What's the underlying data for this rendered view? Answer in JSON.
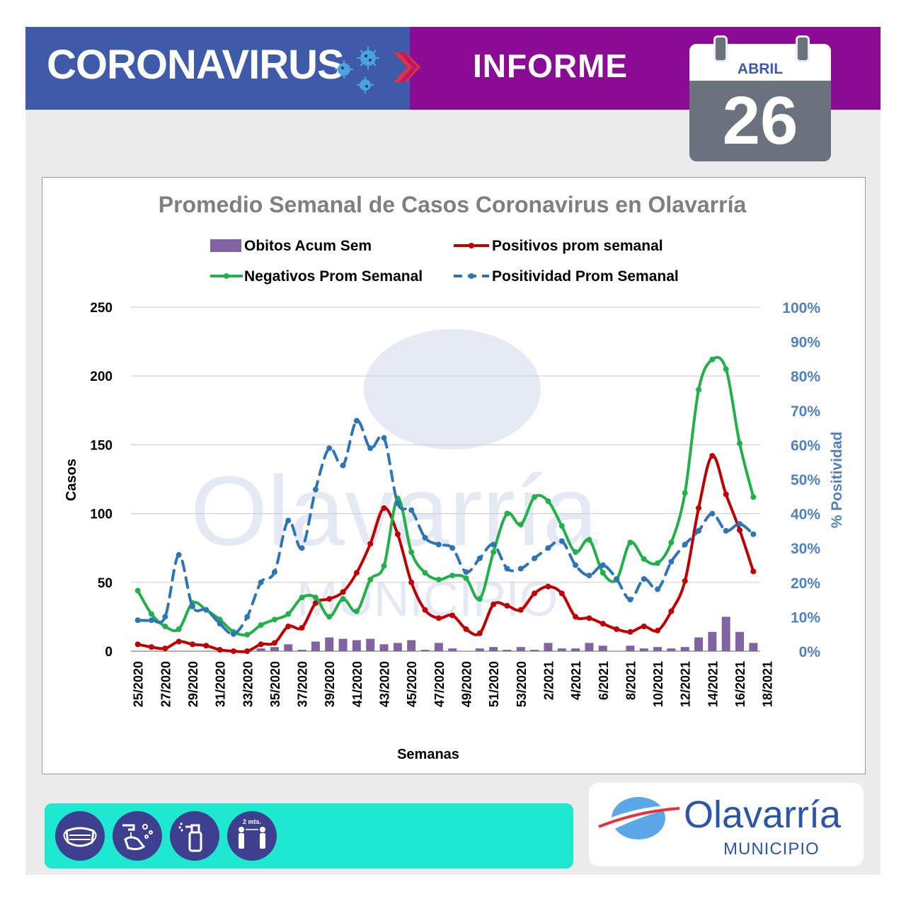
{
  "header": {
    "title": "CORONAVIRUS",
    "subtitle": "INFORME",
    "colors": {
      "left": "#3f5aa8",
      "right": "#8c0b94"
    },
    "date": {
      "month": "ABRIL",
      "day": "26"
    }
  },
  "chart_data": {
    "type": "bar+line",
    "title": "Promedio Semanal de Casos Coronavirus en Olavarría",
    "xlabel": "Semanas",
    "ylabel": "Casos",
    "y2label": "% Positividad",
    "ylim": [
      0,
      250
    ],
    "y2lim": [
      0,
      100
    ],
    "yticks": [
      "0",
      "50",
      "100",
      "150",
      "200",
      "250"
    ],
    "y2ticks": [
      "0%",
      "10%",
      "20%",
      "30%",
      "40%",
      "50%",
      "60%",
      "70%",
      "80%",
      "90%",
      "100%"
    ],
    "xtick_labels": [
      "25/2020",
      "27/2020",
      "29/2020",
      "31/2020",
      "33/2020",
      "35/2020",
      "37/2020",
      "39/2020",
      "41/2020",
      "43/2020",
      "45/2020",
      "47/2020",
      "49/2020",
      "51/2020",
      "53/2020",
      "2/2021",
      "4/2021",
      "6/2021",
      "8/2021",
      "10/2021",
      "12/2021",
      "14/2021",
      "16/2021",
      "18/2021"
    ],
    "legend_position": "top",
    "grid": true,
    "series": [
      {
        "name": "Obitos Acum Sem",
        "kind": "bar",
        "axis": "left",
        "color": "#8064a2",
        "values": [
          0,
          0,
          0,
          0,
          0,
          0,
          0,
          0,
          0,
          2,
          3,
          5,
          1,
          7,
          10,
          9,
          8,
          9,
          5,
          6,
          8,
          1,
          6,
          2,
          0,
          2,
          3,
          1,
          3,
          1,
          6,
          2,
          2,
          6,
          4,
          0,
          4,
          2,
          3,
          2,
          3,
          10,
          14,
          25,
          14,
          6
        ]
      },
      {
        "name": "Positivos prom semanal",
        "kind": "line",
        "axis": "left",
        "color": "#c00000",
        "values": [
          5,
          3,
          2,
          7,
          5,
          4,
          1,
          0,
          0,
          5,
          6,
          18,
          17,
          35,
          38,
          43,
          57,
          78,
          104,
          85,
          50,
          30,
          24,
          26,
          16,
          13,
          34,
          33,
          30,
          42,
          47,
          42,
          25,
          24,
          20,
          16,
          14,
          18,
          15,
          29,
          51,
          104,
          142,
          114,
          88,
          58
        ]
      },
      {
        "name": "Negativos Prom Semanal",
        "kind": "line",
        "axis": "left",
        "color": "#22b04a",
        "values": [
          44,
          27,
          18,
          16,
          35,
          30,
          23,
          14,
          12,
          19,
          23,
          27,
          39,
          39,
          25,
          38,
          29,
          52,
          62,
          111,
          72,
          57,
          52,
          55,
          53,
          38,
          72,
          100,
          92,
          112,
          109,
          91,
          72,
          81,
          57,
          52,
          79,
          67,
          64,
          79,
          115,
          190,
          212,
          205,
          151,
          112
        ]
      },
      {
        "name": "Positividad Prom Semanal",
        "kind": "line",
        "dashed": true,
        "axis": "right",
        "color": "#2e75b6",
        "values": [
          9,
          9,
          10,
          28,
          13,
          12,
          8,
          5,
          10,
          20,
          23,
          38,
          30,
          47,
          59,
          54,
          67,
          59,
          62,
          43,
          41,
          33,
          31,
          30,
          23,
          27,
          31,
          24,
          24,
          27,
          30,
          32,
          25,
          22,
          25,
          21,
          15,
          21,
          18,
          26,
          31,
          35,
          40,
          35,
          37,
          34
        ]
      }
    ]
  },
  "footer": {
    "icons": [
      "mask-icon",
      "hand-wash-icon",
      "sanitizer-icon",
      "distance-icon"
    ],
    "distance_label": "2 mts.",
    "logo": {
      "name": "Olavarría",
      "sub": "MUNICIPIO"
    }
  }
}
